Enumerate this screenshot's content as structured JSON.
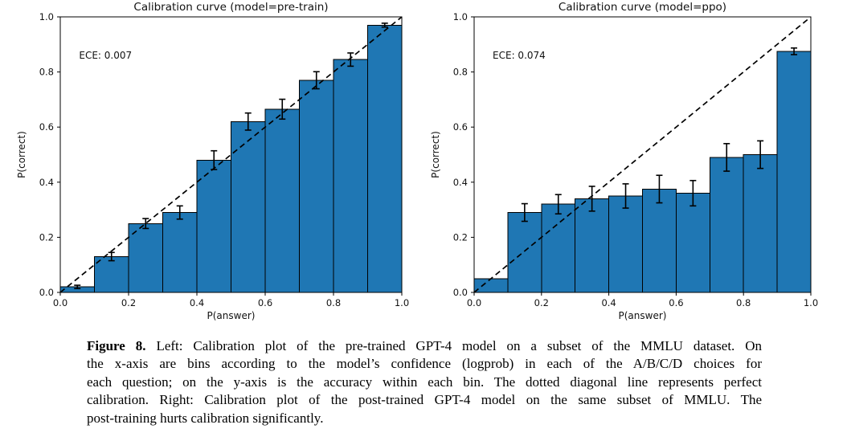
{
  "figure": {
    "caption": {
      "lead": "Figure 8.",
      "lines": [
        "Left: Calibration plot of the pre-trained GPT-4 model on a subset of the MMLU dataset. On",
        "the x-axis are bins according to the model’s confidence (logprob) in each of the A/B/C/D choices for",
        "each question; on the y-axis is the accuracy within each bin. The dotted diagonal line represents perfect",
        "calibration. Right: Calibration plot of the post-trained GPT-4 model on the same subset of MMLU. The",
        "post-training hurts calibration significantly."
      ]
    }
  },
  "chart_data": [
    {
      "type": "bar",
      "title": "Calibration curve (model=pre-train)",
      "annotation": "ECE: 0.007",
      "xlabel": "P(answer)",
      "ylabel": "P(correct)",
      "xlim": [
        0.0,
        1.0
      ],
      "ylim": [
        0.0,
        1.0
      ],
      "xticks": [
        0.0,
        0.2,
        0.4,
        0.6,
        0.8,
        1.0
      ],
      "yticks": [
        0.0,
        0.2,
        0.4,
        0.6,
        0.8,
        1.0
      ],
      "grid": false,
      "bin_edges": [
        0.0,
        0.1,
        0.2,
        0.3,
        0.4,
        0.5,
        0.6,
        0.7,
        0.8,
        0.9,
        1.0
      ],
      "values": [
        0.02,
        0.13,
        0.25,
        0.29,
        0.48,
        0.62,
        0.665,
        0.77,
        0.845,
        0.97
      ],
      "error_bars": [
        0.006,
        0.015,
        0.018,
        0.024,
        0.034,
        0.031,
        0.036,
        0.031,
        0.024,
        0.007
      ],
      "diagonal_line": {
        "style": "dashed",
        "from": [
          0.0,
          0.0
        ],
        "to": [
          1.0,
          1.0
        ],
        "meaning": "perfect calibration"
      },
      "bar_color": "#1f77b4",
      "bar_edge_color": "#000000"
    },
    {
      "type": "bar",
      "title": "Calibration curve (model=ppo)",
      "annotation": "ECE: 0.074",
      "xlabel": "P(answer)",
      "ylabel": "P(correct)",
      "xlim": [
        0.0,
        1.0
      ],
      "ylim": [
        0.0,
        1.0
      ],
      "xticks": [
        0.0,
        0.2,
        0.4,
        0.6,
        0.8,
        1.0
      ],
      "yticks": [
        0.0,
        0.2,
        0.4,
        0.6,
        0.8,
        1.0
      ],
      "grid": false,
      "bin_edges": [
        0.0,
        0.1,
        0.2,
        0.3,
        0.4,
        0.5,
        0.6,
        0.7,
        0.8,
        0.9,
        1.0
      ],
      "values": [
        0.05,
        0.29,
        0.32,
        0.34,
        0.35,
        0.375,
        0.36,
        0.49,
        0.5,
        0.875
      ],
      "error_bars": [
        0.0,
        0.032,
        0.035,
        0.045,
        0.044,
        0.05,
        0.046,
        0.05,
        0.05,
        0.012
      ],
      "diagonal_line": {
        "style": "dashed",
        "from": [
          0.0,
          0.0
        ],
        "to": [
          1.0,
          1.0
        ],
        "meaning": "perfect calibration"
      },
      "bar_color": "#1f77b4",
      "bar_edge_color": "#000000"
    }
  ]
}
